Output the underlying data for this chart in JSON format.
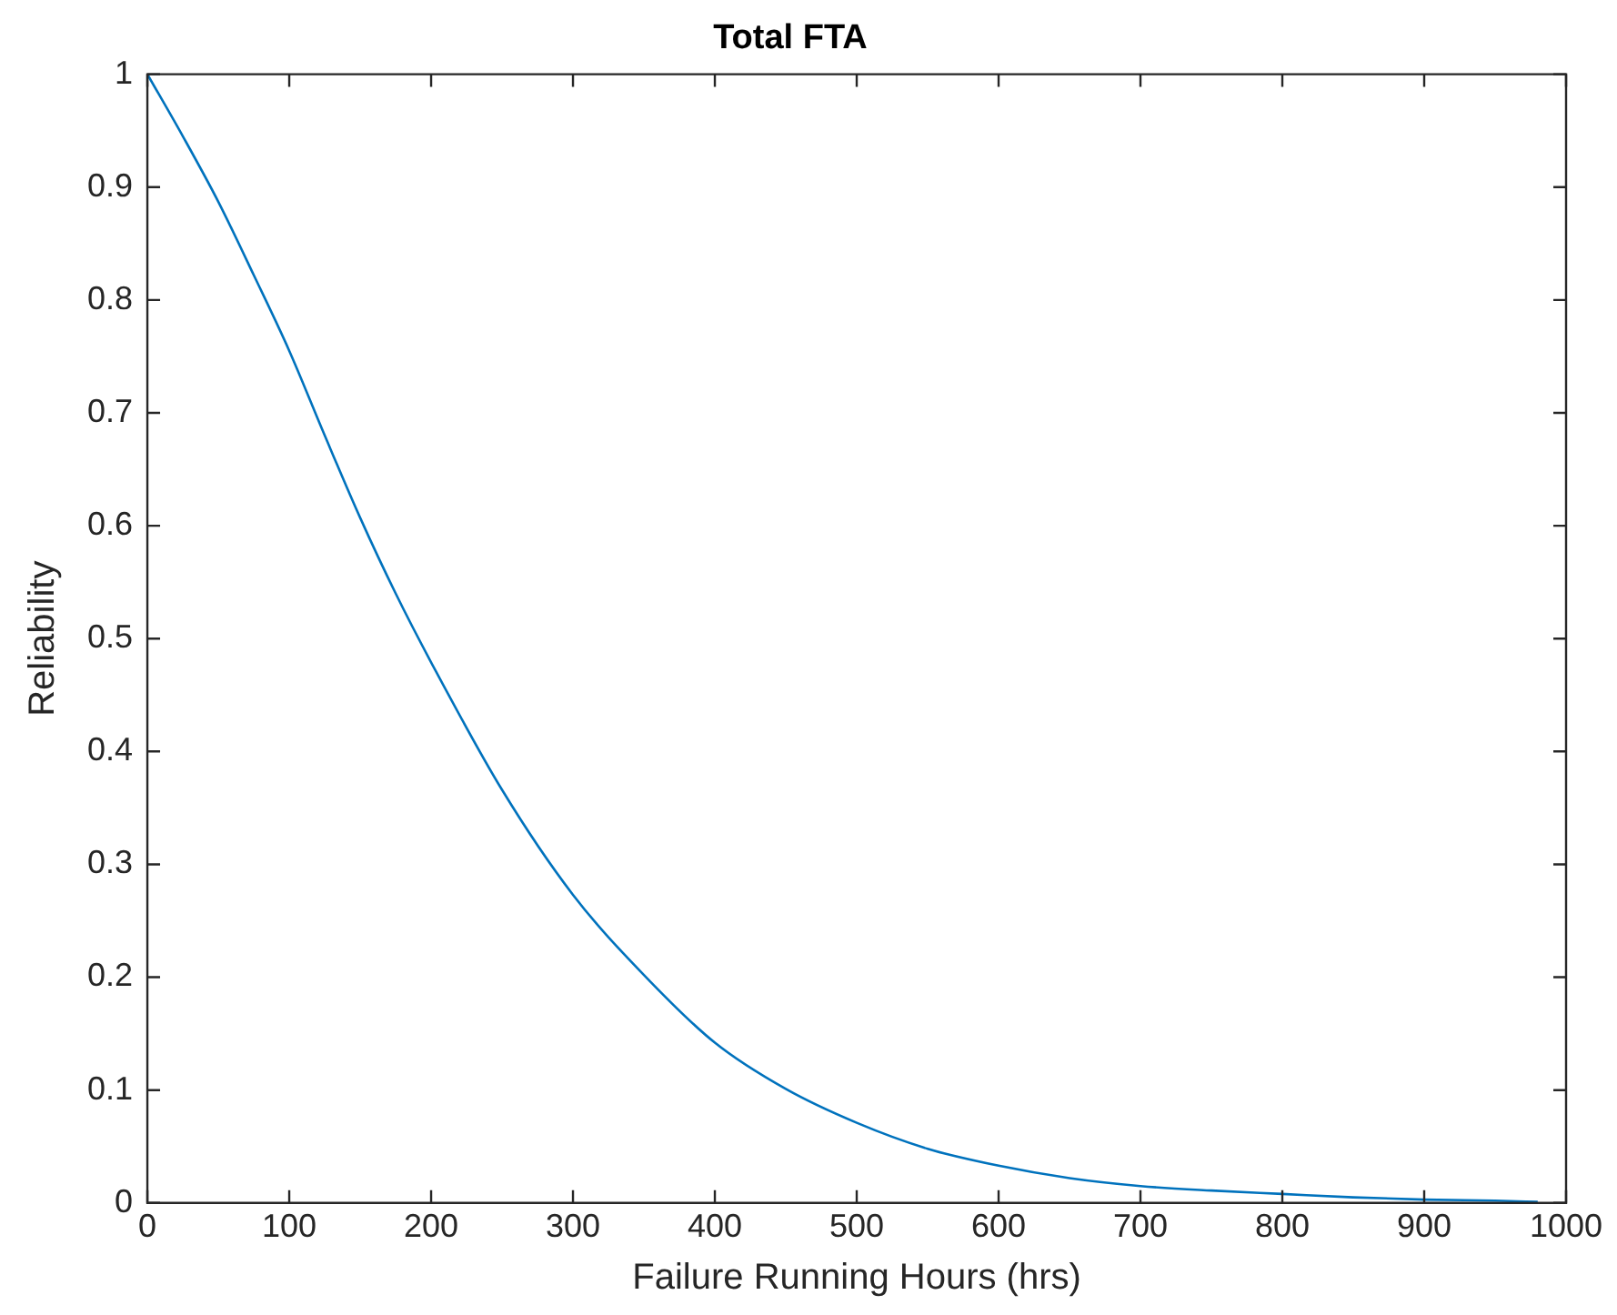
{
  "chart_data": {
    "type": "line",
    "title": "Total FTA",
    "xlabel": "Failure Running Hours (hrs)",
    "ylabel": "Reliability",
    "series": [
      {
        "color": "#0072bd",
        "x": [
          0,
          25,
          50,
          75,
          100,
          125,
          150,
          175,
          200,
          250,
          300,
          350,
          400,
          450,
          500,
          550,
          600,
          650,
          700,
          750,
          800,
          850,
          900,
          950,
          980
        ],
        "values": [
          1,
          0.945,
          0.887,
          0.822,
          0.755,
          0.68,
          0.607,
          0.54,
          0.479,
          0.366,
          0.273,
          0.202,
          0.142,
          0.101,
          0.071,
          0.048,
          0.033,
          0.022,
          0.015,
          0.011,
          0.008,
          0.005,
          0.003,
          0.002,
          0.001
        ]
      }
    ],
    "xlim": [
      0,
      1000
    ],
    "xticks": [
      0,
      100,
      200,
      300,
      400,
      500,
      600,
      700,
      800,
      900,
      1000
    ],
    "ylim": [
      0,
      1
    ],
    "yticks": [
      0,
      0.1,
      0.2,
      0.3,
      0.4,
      0.5,
      0.6,
      0.7,
      0.8,
      0.9,
      1
    ],
    "grid": false,
    "legend": false,
    "marker": "none",
    "line_style": "solid"
  }
}
